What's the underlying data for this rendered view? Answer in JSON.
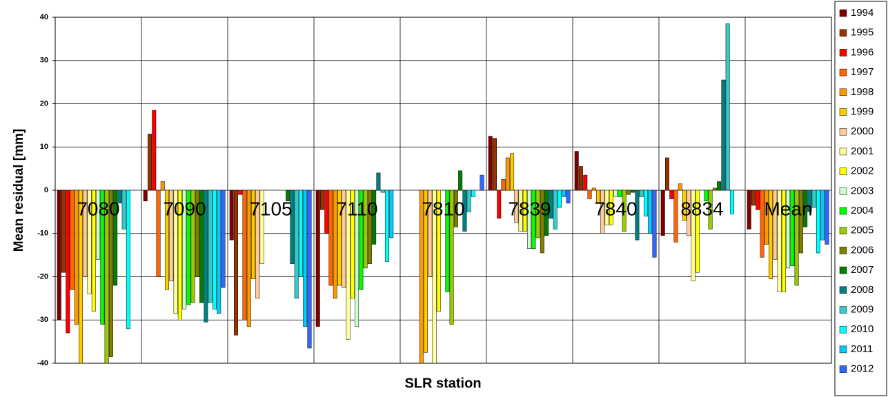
{
  "chart_data": {
    "type": "bar",
    "x_label": "SLR station",
    "y_label": "Mean residual [mm]",
    "categories": [
      "7080",
      "7090",
      "7105",
      "7110",
      "7810",
      "7839",
      "7840",
      "8834",
      "Mean"
    ],
    "ylim": [
      -40,
      40
    ],
    "yticks": [
      -40,
      -30,
      -20,
      -10,
      0,
      10,
      20,
      30,
      40
    ],
    "grid": true,
    "legend": "right",
    "series": [
      {
        "name": "1994",
        "color": "#800000",
        "values": [
          -30,
          -2.5,
          -11.5,
          -31.5,
          null,
          12.5,
          9,
          -10.5,
          -9
        ]
      },
      {
        "name": "1995",
        "color": "#993300",
        "values": [
          -19,
          13,
          -33.5,
          -4.5,
          null,
          12,
          5.5,
          7.5,
          -3.5
        ]
      },
      {
        "name": "1996",
        "color": "#ff0000",
        "values": [
          -33,
          18.5,
          -1,
          -10,
          null,
          -6.5,
          3.5,
          -2,
          -4.5
        ]
      },
      {
        "name": "1997",
        "color": "#ff6600",
        "values": [
          -23,
          -20,
          -30,
          -22,
          null,
          2.5,
          -2,
          -12,
          -15.5
        ]
      },
      {
        "name": "1998",
        "color": "#ff9900",
        "values": [
          -31,
          2,
          -31.5,
          -25,
          -40,
          7.5,
          0.5,
          1.5,
          -12.5
        ]
      },
      {
        "name": "1999",
        "color": "#ffcc00",
        "values": [
          -40,
          -23,
          -20.5,
          -22,
          -37.5,
          8.5,
          -3,
          -7,
          -20.5
        ]
      },
      {
        "name": "2000",
        "color": "#ffcc99",
        "values": [
          -20,
          -21,
          -25,
          -22.5,
          -20,
          -7.5,
          -10,
          -10.5,
          -16
        ]
      },
      {
        "name": "2001",
        "color": "#ffff99",
        "values": [
          -24,
          -28.5,
          -17,
          -34.5,
          -40,
          -9.5,
          -8,
          -21,
          -23.5
        ]
      },
      {
        "name": "2002",
        "color": "#ffff00",
        "values": [
          -28,
          -30,
          null,
          -25,
          -28,
          -9.5,
          -8,
          -19,
          -23.5
        ]
      },
      {
        "name": "2003",
        "color": "#ccffcc",
        "values": [
          -16,
          -27.5,
          null,
          -31.5,
          null,
          -13.5,
          -1.5,
          null,
          -18
        ]
      },
      {
        "name": "2004",
        "color": "#00ff00",
        "values": [
          -31,
          -26.5,
          null,
          -23,
          -23.5,
          -13.5,
          -1.5,
          -2.5,
          -17.5
        ]
      },
      {
        "name": "2005",
        "color": "#99cc00",
        "values": [
          -40,
          -26,
          null,
          -18,
          -31,
          -11,
          -9.5,
          -9,
          -22
        ]
      },
      {
        "name": "2006",
        "color": "#808000",
        "values": [
          -38.5,
          -20,
          null,
          -17,
          -8.5,
          -14.5,
          -1,
          0.5,
          -14.5
        ]
      },
      {
        "name": "2007",
        "color": "#008000",
        "values": [
          -22,
          -26,
          -2.5,
          -12.5,
          4.5,
          -10.5,
          -0.5,
          2,
          -8.5
        ]
      },
      {
        "name": "2008",
        "color": "#008080",
        "values": [
          -3,
          -30.5,
          -17,
          4,
          -9.5,
          -6.5,
          -11.5,
          25.5,
          -5
        ]
      },
      {
        "name": "2009",
        "color": "#33cccc",
        "values": [
          -9,
          -26,
          -25,
          -0.5,
          -5,
          -9,
          -1.5,
          38.5,
          -4
        ]
      },
      {
        "name": "2010",
        "color": "#00ffff",
        "values": [
          -32,
          -27.5,
          -20,
          -16.5,
          -1.5,
          -4,
          -6,
          -5.5,
          -14.5
        ]
      },
      {
        "name": "2011",
        "color": "#00ccff",
        "values": [
          null,
          -28.5,
          -31.5,
          -11,
          null,
          -1.5,
          -10,
          null,
          -11.5
        ]
      },
      {
        "name": "2012",
        "color": "#3366ff",
        "values": [
          null,
          -22.5,
          -36.5,
          null,
          3.5,
          -3,
          -15.5,
          null,
          -12.5
        ]
      }
    ]
  }
}
